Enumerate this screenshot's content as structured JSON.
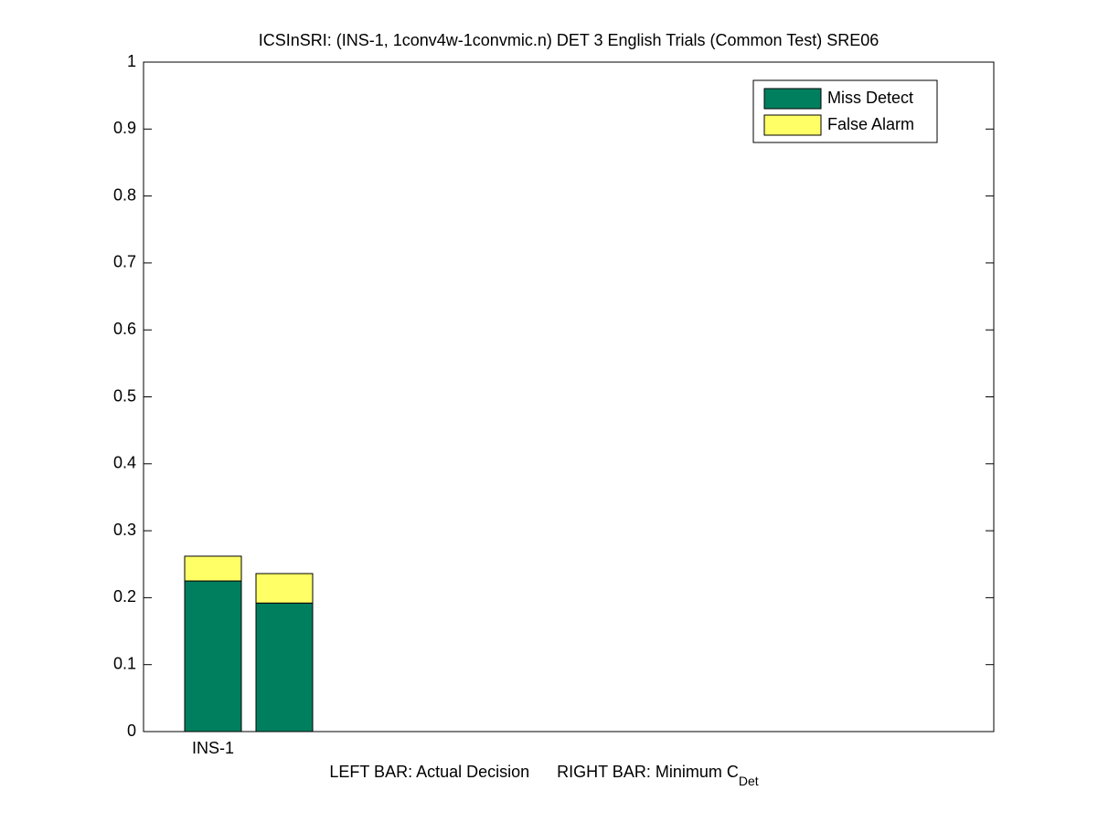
{
  "chart_data": {
    "type": "stacked_bar",
    "title": "ICSInSRI: (INS-1, 1conv4w-1convmic.n) DET 3 English Trials (Common Test) SRE06",
    "xlabel": [
      "LEFT BAR: Actual Decision",
      "RIGHT BAR: Minimum C",
      "Det"
    ],
    "categories": [
      "INS-1",
      null
    ],
    "series": [
      {
        "name": "Miss Detect",
        "color": "#007f5f",
        "values": [
          0.225,
          0.192
        ]
      },
      {
        "name": "False Alarm",
        "color": "#ffff66",
        "values": [
          0.037,
          0.044
        ]
      }
    ],
    "ylim": [
      0,
      1
    ],
    "yticks": [
      0,
      0.1,
      0.2,
      0.3,
      0.4,
      0.5,
      0.6,
      0.7,
      0.8,
      0.9,
      1
    ],
    "grid": false,
    "legend": "upper right"
  }
}
